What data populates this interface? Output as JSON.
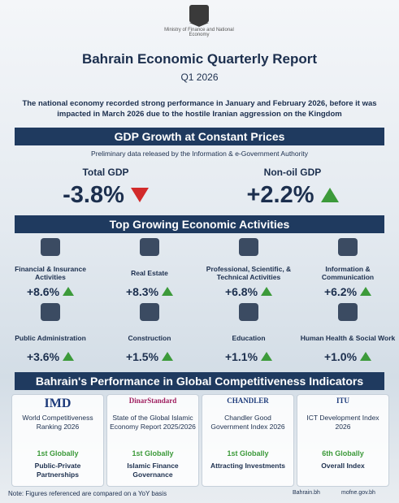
{
  "header": {
    "ministry": "Ministry of Finance and National Economy",
    "title": "Bahrain Economic Quarterly Report",
    "subtitle": "Q1 2026",
    "intro": "The national economy recorded strong performance in January and February 2026, before it was impacted in March 2026 due to the hostile Iranian aggression on the Kingdom"
  },
  "gdp": {
    "heading": "GDP Growth at Constant Prices",
    "note": "Preliminary data released by the Information & e-Government Authority",
    "items": [
      {
        "label": "Total GDP",
        "value": "-3.8%"
      },
      {
        "label": "Non-oil GDP",
        "value": "+2.2%"
      }
    ]
  },
  "activities": {
    "heading": "Top Growing Economic Activities",
    "items": [
      {
        "label": "Financial & Insurance Activities",
        "value": "+8.6%"
      },
      {
        "label": "Real Estate",
        "value": "+8.3%"
      },
      {
        "label": "Professional, Scientific, & Technical Activities",
        "value": "+6.8%"
      },
      {
        "label": "Information & Communication",
        "value": "+6.2%"
      },
      {
        "label": "Public Administration",
        "value": "+3.6%"
      },
      {
        "label": "Construction",
        "value": "+1.5%"
      },
      {
        "label": "Education",
        "value": "+1.1%"
      },
      {
        "label": "Human Health & Social Work",
        "value": "+1.0%"
      }
    ]
  },
  "competitiveness": {
    "heading": "Bahrain's Performance in Global Competitiveness Indicators",
    "items": [
      {
        "org": "IMD",
        "index": "World Competitiveness Ranking 2026",
        "rank": "1st Globally",
        "category": "Public-Private Partnerships"
      },
      {
        "org": "DinarStandard",
        "index": "State of the Global Islamic Economy Report 2025/2026",
        "rank": "1st Globally",
        "category": "Islamic Finance Governance"
      },
      {
        "org": "CHANDLER",
        "index": "Chandler Good Government Index 2026",
        "rank": "1st Globally",
        "category": "Attracting Investments"
      },
      {
        "org": "ITU",
        "index": "ICT Development Index 2026",
        "rank": "6th Globally",
        "category": "Overall Index"
      }
    ]
  },
  "footer": {
    "note": "Note: Figures referenced are compared on a YoY basis",
    "site1": "Bahrain.bh",
    "site2": "mofne.gov.bh"
  }
}
